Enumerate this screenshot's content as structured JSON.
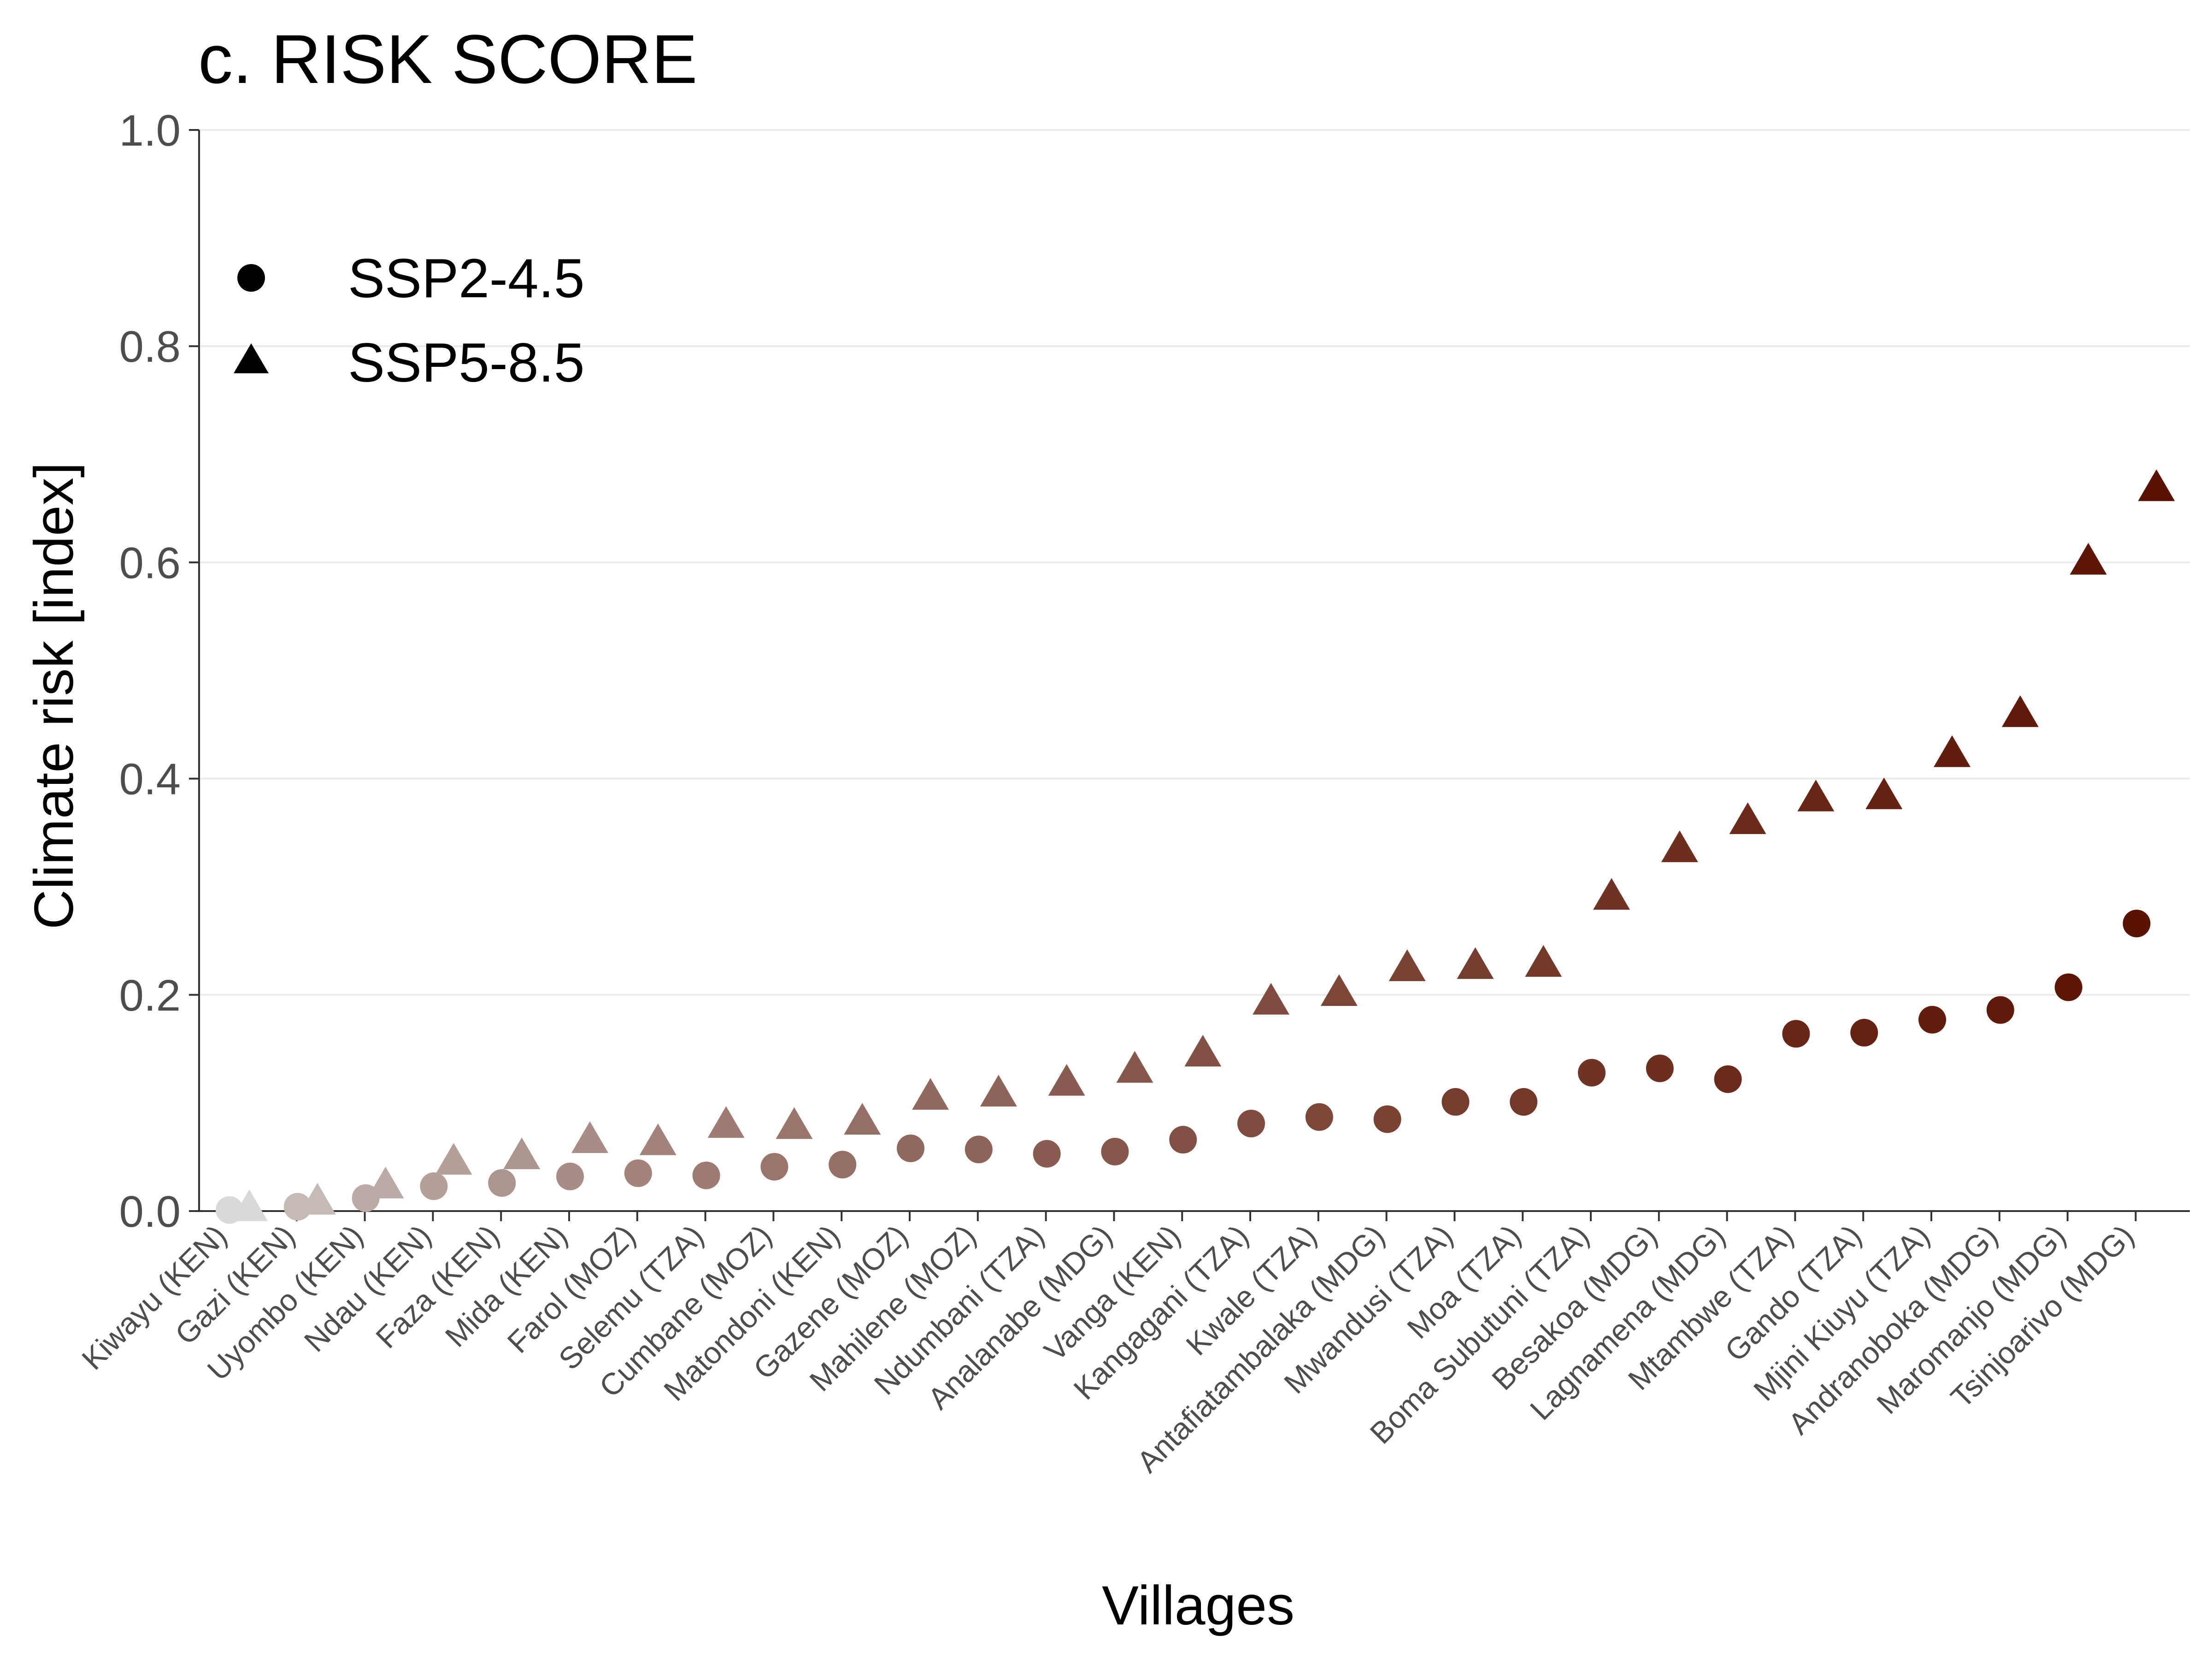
{
  "chart_data": {
    "type": "scatter",
    "title": "c. RISK SCORE",
    "xlabel": "Villages",
    "ylabel": "Climate risk [index]",
    "ylim": [
      0,
      1
    ],
    "yticks": [
      "0.0",
      "0.2",
      "0.4",
      "0.6",
      "0.8",
      "1.0"
    ],
    "grid": "horizontal",
    "legend_position": "top-left",
    "categories": [
      "Kiwayu (KEN)",
      "Gazi (KEN)",
      "Uyombo (KEN)",
      "Ndau (KEN)",
      "Faza (KEN)",
      "Mida (KEN)",
      "Farol (MOZ)",
      "Selemu (TZA)",
      "Cumbane (MOZ)",
      "Matondoni (KEN)",
      "Gazene (MOZ)",
      "Mahilene (MOZ)",
      "Ndumbani (TZA)",
      "Analanabe (MDG)",
      "Vanga (KEN)",
      "Kangagani (TZA)",
      "Kwale (TZA)",
      "Antafiatambalaka (MDG)",
      "Mwandusi (TZA)",
      "Moa (TZA)",
      "Boma Subutuni (TZA)",
      "Besakoa (MDG)",
      "Lagnamena (MDG)",
      "Mtambwe (TZA)",
      "Gando (TZA)",
      "Mjini Kiuyu (TZA)",
      "Andranoboka (MDG)",
      "Maromanjo (MDG)",
      "Tsinjoarivo (MDG)"
    ],
    "series": [
      {
        "name": "SSP2-4.5",
        "marker": "circle",
        "values": [
          0.001,
          0.004,
          0.012,
          0.023,
          0.026,
          0.032,
          0.035,
          0.033,
          0.041,
          0.043,
          0.058,
          0.057,
          0.053,
          0.055,
          0.066,
          0.081,
          0.087,
          0.085,
          0.101,
          0.101,
          0.128,
          0.132,
          0.122,
          0.164,
          0.165,
          0.177,
          0.186,
          0.207,
          0.266
        ]
      },
      {
        "name": "SSP5-8.5",
        "marker": "triangle",
        "values": [
          0.003,
          0.009,
          0.024,
          0.046,
          0.051,
          0.066,
          0.064,
          0.08,
          0.079,
          0.083,
          0.106,
          0.109,
          0.119,
          0.131,
          0.146,
          0.194,
          0.202,
          0.225,
          0.227,
          0.229,
          0.291,
          0.335,
          0.361,
          0.382,
          0.384,
          0.423,
          0.46,
          0.601,
          0.669
        ]
      }
    ],
    "color_scale": {
      "low": "#d9d9d9",
      "high": "#5a1200"
    }
  }
}
